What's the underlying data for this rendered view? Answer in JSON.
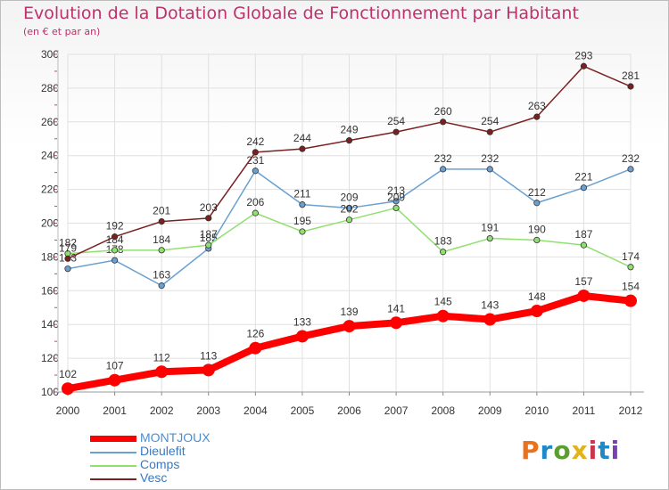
{
  "header": {
    "title": "Evolution de la Dotation Globale de Fonctionnement par Habitant",
    "subtitle": "(en € et par an)"
  },
  "brand": {
    "text": "Proxiti",
    "colors": [
      "#e8731e",
      "#1e88c9",
      "#5a9e2e",
      "#e2b21a",
      "#c9344e",
      "#1e88c9",
      "#7a3fb0"
    ]
  },
  "colors": {
    "title": "#c0306a",
    "axis_text": "#333333",
    "grid": "#e0e0e0",
    "tick_marks": "#d04060"
  },
  "chart_data": {
    "type": "line",
    "title": "Evolution de la Dotation Globale de Fonctionnement par Habitant",
    "subtitle": "(en € et par an)",
    "x": [
      2000,
      2001,
      2002,
      2003,
      2004,
      2005,
      2006,
      2007,
      2008,
      2009,
      2010,
      2011,
      2012
    ],
    "ylim": [
      100,
      300
    ],
    "yticks": [
      100,
      120,
      140,
      160,
      180,
      200,
      220,
      240,
      260,
      280,
      300
    ],
    "grid": true,
    "legend_position": "bottom-left",
    "series": [
      {
        "name": "MONTJOUX",
        "color": "#ff0000",
        "emphasis": true,
        "values": [
          102,
          107,
          112,
          113,
          126,
          133,
          139,
          141,
          145,
          143,
          148,
          157,
          154
        ]
      },
      {
        "name": "Dieulefit",
        "color": "#6aa0d0",
        "emphasis": false,
        "values": [
          173,
          178,
          163,
          185,
          231,
          211,
          209,
          213,
          232,
          232,
          212,
          221,
          232
        ]
      },
      {
        "name": "Comps",
        "color": "#90e070",
        "emphasis": false,
        "values": [
          182,
          184,
          184,
          187,
          206,
          195,
          202,
          209,
          183,
          191,
          190,
          187,
          174
        ]
      },
      {
        "name": "Vesc",
        "color": "#7a2020",
        "emphasis": false,
        "values": [
          179,
          192,
          201,
          203,
          242,
          244,
          249,
          254,
          260,
          254,
          263,
          293,
          281
        ]
      }
    ]
  }
}
